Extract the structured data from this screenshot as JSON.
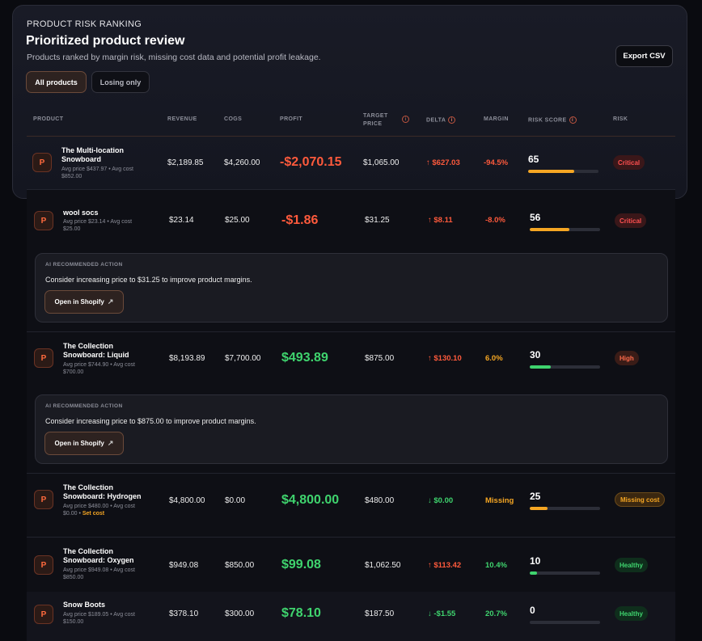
{
  "header": {
    "kicker": "PRODUCT RISK RANKING",
    "title": "Prioritized product review",
    "subtitle": "Products ranked by margin risk, missing cost data and potential profit leakage.",
    "export_label": "Export CSV",
    "tabs": [
      {
        "label": "All products",
        "active": true
      },
      {
        "label": "Losing only",
        "active": false
      }
    ]
  },
  "columns": {
    "product": "PRODUCT",
    "revenue": "REVENUE",
    "cogs": "COGS",
    "profit": "PROFIT",
    "target_price_1": "TARGET",
    "target_price_2": "PRICE",
    "delta": "DELTA",
    "margin": "MARGIN",
    "risk_score": "RISK SCORE",
    "risk": "RISK"
  },
  "rows": [
    {
      "name1": "The Multi-location",
      "name2": "Snowboard",
      "meta1": "Avg price $437.97 • Avg cost",
      "meta2": "$852.00",
      "revenue": "$2,189.85",
      "cogs": "$4,260.00",
      "profit": "-$2,070.15",
      "target": "$1,065.00",
      "delta": "↑ $627.03",
      "margin": "-94.5%",
      "score": "65",
      "score_value": 65,
      "risk": "Critical"
    },
    {
      "name1": "wool socs",
      "name2": "",
      "meta1": "Avg price $23.14 • Avg cost",
      "meta2": "$25.00",
      "revenue": "$23.14",
      "cogs": "$25.00",
      "profit": "-$1.86",
      "target": "$31.25",
      "delta": "↑ $8.11",
      "margin": "-8.0%",
      "score": "56",
      "score_value": 56,
      "risk": "Critical"
    },
    {
      "name1": "The Collection",
      "name2": "Snowboard: Liquid",
      "meta1": "Avg price $744.90 • Avg cost",
      "meta2": "$700.00",
      "revenue": "$8,193.89",
      "cogs": "$7,700.00",
      "profit": "$493.89",
      "target": "$875.00",
      "delta": "↑ $130.10",
      "margin": "6.0%",
      "score": "30",
      "score_value": 30,
      "risk": "High"
    },
    {
      "name1": "The Collection",
      "name2": "Snowboard: Hydrogen",
      "meta1": "Avg price $480.00 • Avg cost",
      "meta2_prefix": "$0.00 • ",
      "meta2_link": "Set cost",
      "revenue": "$4,800.00",
      "cogs": "$0.00",
      "profit": "$4,800.00",
      "target": "$480.00",
      "delta": "↓ $0.00",
      "margin": "Missing",
      "score": "25",
      "score_value": 25,
      "risk": "Missing cost"
    },
    {
      "name1": "The Collection",
      "name2": "Snowboard: Oxygen",
      "meta1": "Avg price $949.08 • Avg cost",
      "meta2": "$850.00",
      "revenue": "$949.08",
      "cogs": "$850.00",
      "profit": "$99.08",
      "target": "$1,062.50",
      "delta": "↑ $113.42",
      "margin": "10.4%",
      "score": "10",
      "score_value": 10,
      "risk": "Healthy"
    },
    {
      "name1": "Snow Boots",
      "name2": "",
      "meta1": "Avg price $189.05 • Avg cost",
      "meta2": "$150.00",
      "revenue": "$378.10",
      "cogs": "$300.00",
      "profit": "$78.10",
      "target": "$187.50",
      "delta": "↓ -$1.55",
      "margin": "20.7%",
      "score": "0",
      "score_value": 0,
      "risk": "Healthy"
    }
  ],
  "ai_actions": [
    {
      "label": "AI RECOMMENDED ACTION",
      "text": "Consider increasing price to $31.25 to improve product margins.",
      "button": "Open in Shopify"
    },
    {
      "label": "AI RECOMMENDED ACTION",
      "text": "Consider increasing price to $875.00 to improve product margins.",
      "button": "Open in Shopify"
    }
  ],
  "product_icon_letter": "P",
  "colors": {
    "accent": "#ff6a3d",
    "negative": "#ff5a3c",
    "positive": "#3fd46e",
    "warning": "#f5a623"
  }
}
